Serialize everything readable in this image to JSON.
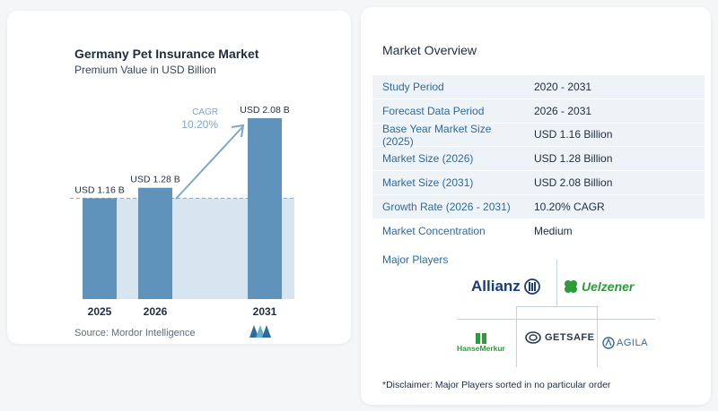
{
  "chart_data": {
    "type": "bar",
    "title": "Germany Pet Insurance Market",
    "subtitle": "Premium Value in USD Billion",
    "categories": [
      "2025",
      "2026",
      "2031"
    ],
    "values": [
      1.16,
      1.28,
      2.08
    ],
    "data_labels": [
      "USD 1.16 B",
      "USD 1.28 B",
      "USD 2.08 B"
    ],
    "ylim": [
      0,
      2.08
    ],
    "reference_line_value": 1.16,
    "cagr_label": "CAGR",
    "cagr_value": "10.20%",
    "colors": {
      "bar": "#5f93bb",
      "bar_light": "#d7e5f0",
      "cagr_text": "#7fa7c9",
      "arrow": "#7fa7c9"
    }
  },
  "source": "Source: Mordor Intelligence",
  "overview": {
    "title": "Market Overview",
    "rows": [
      {
        "label": "Study Period",
        "value": "2020 - 2031"
      },
      {
        "label": "Forecast Data Period",
        "value": "2026 - 2031"
      },
      {
        "label": "Base Year Market Size (2025)",
        "value": "USD 1.16 Billion"
      },
      {
        "label": "Market Size (2026)",
        "value": "USD 1.28 Billion"
      },
      {
        "label": "Market Size (2031)",
        "value": "USD 2.08 Billion"
      },
      {
        "label": "Growth Rate (2026 - 2031)",
        "value": "10.20% CAGR"
      },
      {
        "label": "Market Concentration",
        "value": "Medium"
      }
    ]
  },
  "major_players": {
    "title": "Major Players",
    "names": [
      "Allianz",
      "Uelzener",
      "HanseMerkur",
      "GETSAFE",
      "AGILA"
    ]
  },
  "disclaimer": "*Disclaimer: Major Players sorted in no particular order"
}
